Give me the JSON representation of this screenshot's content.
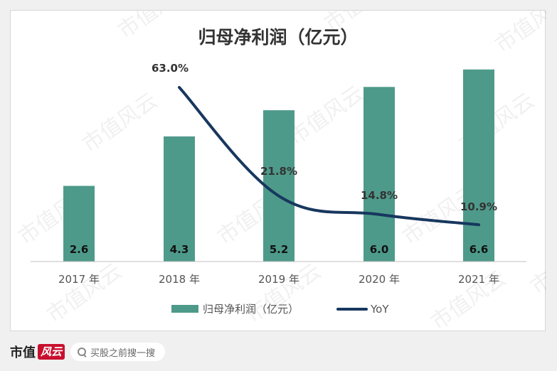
{
  "chart_data": {
    "type": "bar+line",
    "title": "归母净利润（亿元）",
    "categories": [
      "2017 年",
      "2018 年",
      "2019 年",
      "2020 年",
      "2021 年"
    ],
    "series": [
      {
        "name": "归母净利润（亿元）",
        "kind": "bar",
        "color": "#4e9a8a",
        "values": [
          2.6,
          4.3,
          5.2,
          6.0,
          6.6
        ],
        "labels": [
          "2.6",
          "4.3",
          "5.2",
          "6.0",
          "6.6"
        ]
      },
      {
        "name": "YoY",
        "kind": "line",
        "color": "#17375e",
        "values": [
          null,
          63.0,
          21.8,
          14.8,
          10.9
        ],
        "labels": [
          "",
          "63.0%",
          "21.8%",
          "14.8%",
          "10.9%"
        ]
      }
    ],
    "legend_position": "bottom",
    "grid": false
  },
  "watermark": "市值风云",
  "footer": {
    "brand": "市值",
    "brand_mark": "风云",
    "search_placeholder": "买股之前搜一搜"
  }
}
